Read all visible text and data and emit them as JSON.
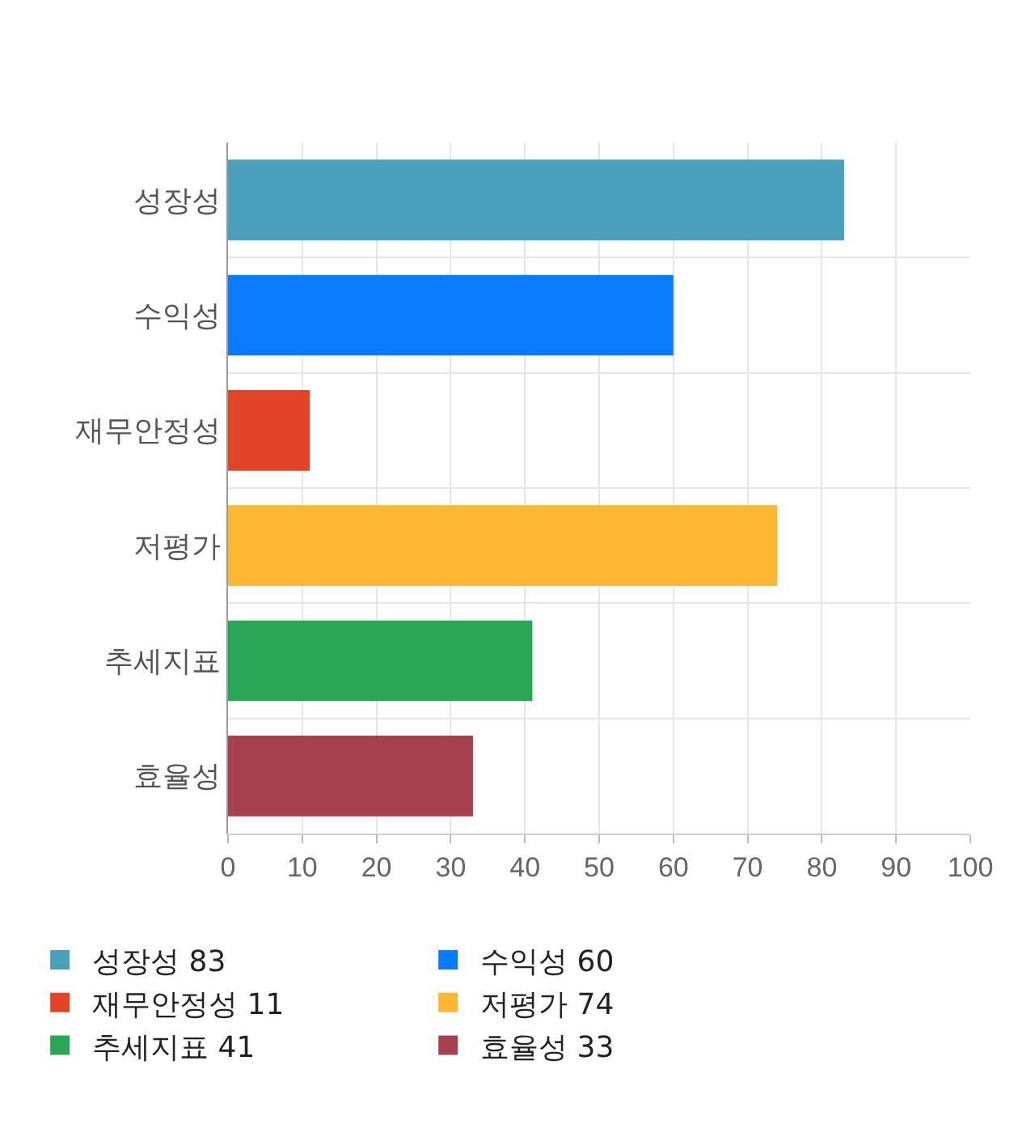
{
  "chart_data": {
    "type": "bar",
    "orientation": "horizontal",
    "categories": [
      "성장성",
      "수익성",
      "재무안정성",
      "저평가",
      "추세지표",
      "효율성"
    ],
    "series": [
      {
        "name": "성장성 83",
        "color": "#4aa0ba",
        "values": [
          83,
          null,
          null,
          null,
          null,
          null
        ]
      },
      {
        "name": "수익성 60",
        "color": "#0a7aff",
        "values": [
          null,
          60,
          null,
          null,
          null,
          null
        ]
      },
      {
        "name": "재무안정성 11",
        "color": "#e24427",
        "values": [
          null,
          null,
          11,
          null,
          null,
          null
        ]
      },
      {
        "name": "저평가 74",
        "color": "#feb733",
        "values": [
          null,
          null,
          null,
          74,
          null,
          null
        ]
      },
      {
        "name": "추세지표 41",
        "color": "#2aa655",
        "values": [
          null,
          null,
          null,
          null,
          41,
          null
        ]
      },
      {
        "name": "효율성 33",
        "color": "#a8414f",
        "values": [
          null,
          null,
          null,
          null,
          null,
          33
        ]
      }
    ],
    "xlim": [
      0,
      100
    ],
    "xticks": [
      0,
      10,
      20,
      30,
      40,
      50,
      60,
      70,
      80,
      90,
      100
    ],
    "grid": true,
    "legend": "bottom"
  }
}
